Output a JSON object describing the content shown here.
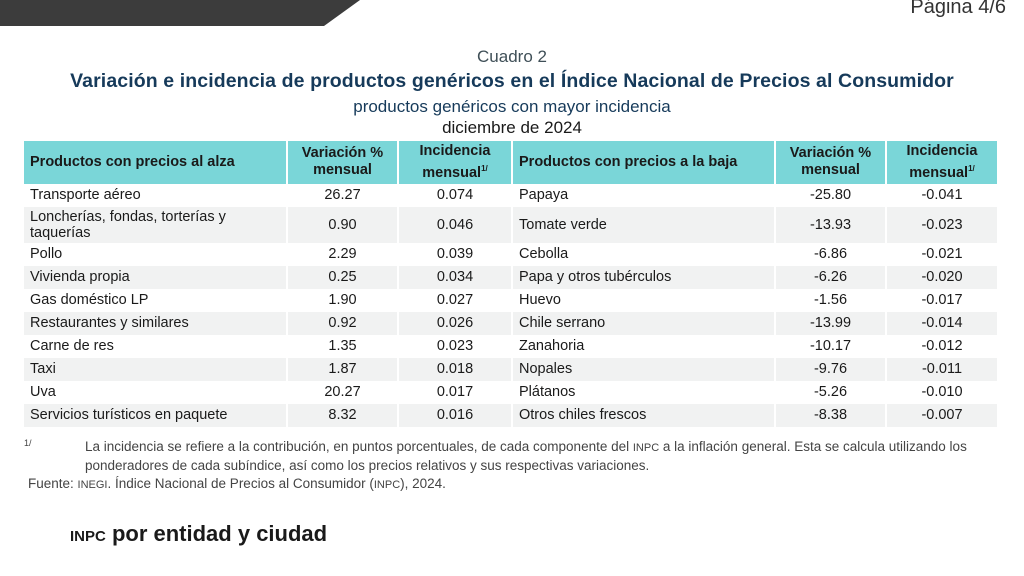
{
  "page": {
    "label": "Página 4/6"
  },
  "header": {
    "cuadro": "Cuadro 2",
    "title": "Variación e incidencia de productos genéricos en el Índice Nacional de Precios al Consumidor",
    "subtitle": "productos genéricos con mayor incidencia",
    "date": "diciembre de 2024"
  },
  "table": {
    "columns": {
      "up_product": "Productos con precios al alza",
      "up_var": "Variación % mensual",
      "up_inc": "Incidencia mensual",
      "down_product": "Productos con precios a la baja",
      "down_var": "Variación % mensual",
      "down_inc": "Incidencia mensual",
      "note_mark": "1/"
    },
    "rows": [
      [
        "Transporte aéreo",
        "26.27",
        "0.074",
        "Papaya",
        "-25.80",
        "-0.041"
      ],
      [
        "Loncherías, fondas, torterías y taquerías",
        "0.90",
        "0.046",
        "Tomate verde",
        "-13.93",
        "-0.023"
      ],
      [
        "Pollo",
        "2.29",
        "0.039",
        "Cebolla",
        "-6.86",
        "-0.021"
      ],
      [
        "Vivienda propia",
        "0.25",
        "0.034",
        "Papa y otros tubérculos",
        "-6.26",
        "-0.020"
      ],
      [
        "Gas doméstico LP",
        "1.90",
        "0.027",
        "Huevo",
        "-1.56",
        "-0.017"
      ],
      [
        "Restaurantes y similares",
        "0.92",
        "0.026",
        "Chile serrano",
        "-13.99",
        "-0.014"
      ],
      [
        "Carne de res",
        "1.35",
        "0.023",
        "Zanahoria",
        "-10.17",
        "-0.012"
      ],
      [
        "Taxi",
        "1.87",
        "0.018",
        "Nopales",
        "-9.76",
        "-0.011"
      ],
      [
        "Uva",
        "20.27",
        "0.017",
        "Plátanos",
        "-5.26",
        "-0.010"
      ],
      [
        "Servicios turísticos en paquete",
        "8.32",
        "0.016",
        "Otros chiles frescos",
        "-8.38",
        "-0.007"
      ]
    ]
  },
  "footnote": {
    "mark": "1/",
    "text_a": "La incidencia se refiere a la contribución, en puntos porcentuales, de cada componente del ",
    "inpc": "INPC",
    "text_b": " a la inflación general. Esta se calcula utilizando los ponderadores de cada subíndice, así como los precios relativos y sus respectivas variaciones."
  },
  "source": {
    "prefix": "Fuente: ",
    "inegi": "INEGI",
    "middle": ". Índice Nacional de Precios al Consumidor (",
    "inpc": "INPC",
    "suffix": "), 2024."
  },
  "section": {
    "abbr": "INPC",
    "title": " por entidad y ciudad"
  }
}
